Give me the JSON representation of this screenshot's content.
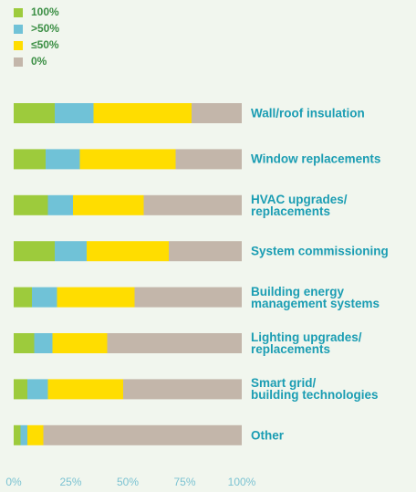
{
  "chart_data": {
    "type": "stacked_barh",
    "categories": [
      "Wall/roof insulation",
      "Window replacements",
      "HVAC upgrades/\nreplacements",
      "System commissioning",
      "Building energy\nmanagement systems",
      "Lighting upgrades/\nreplacements",
      "Smart grid/\nbuilding technologies",
      "Other"
    ],
    "series": [
      {
        "name": "100%",
        "color": "#9dcb3c",
        "values": [
          18,
          14,
          15,
          18,
          8,
          9,
          6,
          3
        ]
      },
      {
        "name": ">50%",
        "color": "#70c2d7",
        "values": [
          17,
          15,
          11,
          14,
          11,
          8,
          9,
          3
        ]
      },
      {
        "name": "≤50%",
        "color": "#ffdd00",
        "values": [
          43,
          42,
          31,
          36,
          34,
          24,
          33,
          7
        ]
      },
      {
        "name": "0%",
        "color": "#c3b6aa",
        "values": [
          22,
          29,
          43,
          32,
          47,
          59,
          52,
          87
        ]
      }
    ],
    "xlim": [
      0,
      100
    ],
    "xticks": [
      {
        "value": 0,
        "label": "0%"
      },
      {
        "value": 25,
        "label": "25%"
      },
      {
        "value": 50,
        "label": "50%"
      },
      {
        "value": 75,
        "label": "75%"
      },
      {
        "value": 100,
        "label": "100%"
      }
    ],
    "legend": "top-left",
    "grid": false
  }
}
